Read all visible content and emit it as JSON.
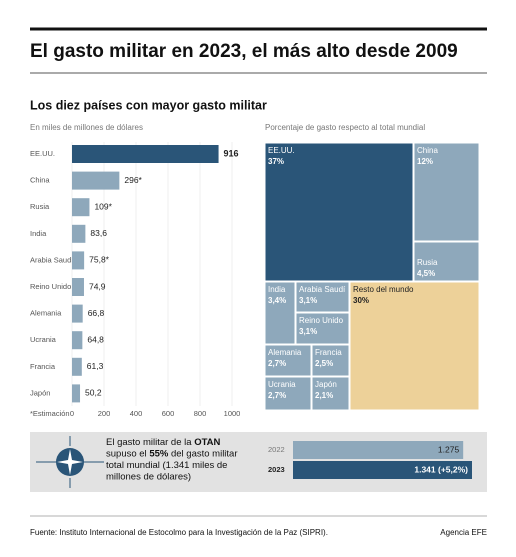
{
  "header": {
    "title": "El gasto militar en 2023, el más alto desde 2009",
    "subtitle": "Los diez países con mayor gasto militar"
  },
  "chart_data": [
    {
      "type": "bar",
      "orientation": "horizontal",
      "axis_label": "En miles de millones de dólares",
      "note": "*Estimación",
      "categories": [
        "EE.UU.",
        "China",
        "Rusia",
        "India",
        "Arabia Saudí",
        "Reino Unido",
        "Alemania",
        "Ucrania",
        "Francia",
        "Japón"
      ],
      "values": [
        916,
        296,
        109,
        83.6,
        75.8,
        74.9,
        66.8,
        64.8,
        61.3,
        50.2
      ],
      "value_labels": [
        "916",
        "296*",
        "109*",
        "83,6",
        "75,8*",
        "74,9",
        "66,8",
        "64,8",
        "61,3",
        "50,2"
      ],
      "colors": [
        "#2a5578",
        "#8ea8bb",
        "#8ea8bb",
        "#8ea8bb",
        "#8ea8bb",
        "#8ea8bb",
        "#8ea8bb",
        "#8ea8bb",
        "#8ea8bb",
        "#8ea8bb"
      ],
      "xlim": [
        0,
        1000
      ],
      "xticks": [
        0,
        200,
        400,
        600,
        800,
        1000
      ]
    },
    {
      "type": "treemap",
      "title": "Porcentaje de gasto respecto al total mundial",
      "categories": [
        "EE.UU.",
        "China",
        "Rusia",
        "India",
        "Arabia Saudí",
        "Reino Unido",
        "Alemania",
        "Francia",
        "Ucrania",
        "Japón",
        "Resto del mundo"
      ],
      "values": [
        37,
        12,
        4.5,
        3.4,
        3.1,
        3.1,
        2.7,
        2.5,
        2.7,
        2.1,
        30
      ],
      "value_labels": [
        "37%",
        "12%",
        "4,5%",
        "3,4%",
        "3,1%",
        "3,1%",
        "2,7%",
        "2,5%",
        "2,7%",
        "2,1%",
        "30%"
      ],
      "colors": [
        "#2a5578",
        "#8ea8bb",
        "#8ea8bb",
        "#8ea8bb",
        "#8ea8bb",
        "#8ea8bb",
        "#8ea8bb",
        "#8ea8bb",
        "#8ea8bb",
        "#8ea8bb",
        "#edd199"
      ]
    },
    {
      "type": "bar",
      "orientation": "horizontal",
      "categories": [
        "2022",
        "2023"
      ],
      "values": [
        1275,
        1341
      ],
      "value_labels": [
        "1.275",
        "1.341 (+5,2%)"
      ],
      "colors": [
        "#8ea8bb",
        "#2a5578"
      ]
    }
  ],
  "nato_note": [
    [
      {
        "text": "El gasto militar de la ",
        "bold": false
      },
      {
        "text": "OTAN",
        "bold": true
      }
    ],
    [
      {
        "text": "supuso el ",
        "bold": false
      },
      {
        "text": "55%",
        "bold": true
      },
      {
        "text": " del gasto militar",
        "bold": false
      }
    ],
    [
      {
        "text": "total mundial (1.341 miles de",
        "bold": false
      }
    ],
    [
      {
        "text": "millones de dólares)",
        "bold": false
      }
    ]
  ],
  "footer": {
    "source": "Fuente: Instituto Internacional de Estocolmo para la Investigación de la Paz (SIPRI).",
    "credit": "Agencia EFE"
  }
}
